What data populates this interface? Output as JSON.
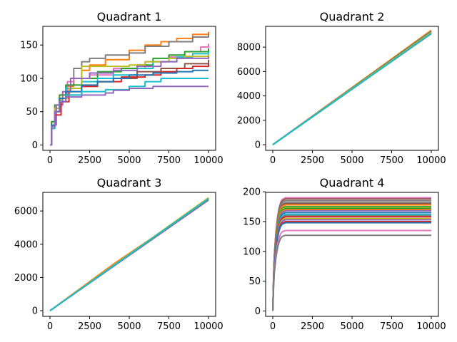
{
  "palette": [
    "#1f77b4",
    "#ff7f0e",
    "#2ca02c",
    "#d62728",
    "#9467bd",
    "#8c564b",
    "#e377c2",
    "#7f7f7f",
    "#bcbd22",
    "#17becf"
  ],
  "chart_data": [
    {
      "type": "line",
      "title": "Quadrant 1",
      "xlabel": "",
      "ylabel": "",
      "xlim": [
        -450,
        10450
      ],
      "ylim": [
        -8,
        178
      ],
      "xticks": [
        0,
        2500,
        5000,
        7500,
        10000
      ],
      "xtick_labels": [
        "0",
        "2500",
        "5000",
        "7500",
        "10000"
      ],
      "yticks": [
        0,
        50,
        100,
        150
      ],
      "ytick_labels": [
        "0",
        "50",
        "100",
        "150"
      ],
      "step": true,
      "grid": false,
      "series": [
        {
          "color": "#ff7f0e",
          "points": [
            [
              0,
              0
            ],
            [
              100,
              30
            ],
            [
              300,
              55
            ],
            [
              600,
              75
            ],
            [
              1000,
              88
            ],
            [
              1500,
              100
            ],
            [
              2000,
              112
            ],
            [
              2500,
              120
            ],
            [
              3500,
              128
            ],
            [
              5000,
              142
            ],
            [
              6000,
              150
            ],
            [
              7000,
              155
            ],
            [
              8000,
              160
            ],
            [
              9000,
              166
            ],
            [
              10000,
              170
            ]
          ]
        },
        {
          "color": "#7f7f7f",
          "points": [
            [
              0,
              0
            ],
            [
              100,
              35
            ],
            [
              300,
              55
            ],
            [
              600,
              70
            ],
            [
              1000,
              90
            ],
            [
              1500,
              115
            ],
            [
              2000,
              125
            ],
            [
              2500,
              130
            ],
            [
              3500,
              135
            ],
            [
              5000,
              138
            ],
            [
              6000,
              148
            ],
            [
              7500,
              155
            ],
            [
              9000,
              162
            ],
            [
              10000,
              167
            ]
          ]
        },
        {
          "color": "#e377c2",
          "points": [
            [
              0,
              0
            ],
            [
              100,
              30
            ],
            [
              300,
              50
            ],
            [
              700,
              70
            ],
            [
              1100,
              95
            ],
            [
              1500,
              100
            ],
            [
              2500,
              105
            ],
            [
              4000,
              115
            ],
            [
              6000,
              125
            ],
            [
              7500,
              132
            ],
            [
              8500,
              140
            ],
            [
              9500,
              147
            ],
            [
              10000,
              152
            ]
          ]
        },
        {
          "color": "#2ca02c",
          "points": [
            [
              0,
              0
            ],
            [
              100,
              35
            ],
            [
              300,
              60
            ],
            [
              600,
              75
            ],
            [
              1000,
              90
            ],
            [
              2000,
              100
            ],
            [
              3000,
              110
            ],
            [
              4500,
              115
            ],
            [
              5500,
              120
            ],
            [
              6500,
              130
            ],
            [
              7500,
              135
            ],
            [
              8500,
              140
            ],
            [
              10000,
              145
            ]
          ]
        },
        {
          "color": "#17becf",
          "points": [
            [
              0,
              0
            ],
            [
              100,
              25
            ],
            [
              300,
              50
            ],
            [
              600,
              70
            ],
            [
              1000,
              85
            ],
            [
              2000,
              95
            ],
            [
              3000,
              100
            ],
            [
              4000,
              105
            ],
            [
              5500,
              115
            ],
            [
              6500,
              125
            ],
            [
              8000,
              132
            ],
            [
              9000,
              137
            ],
            [
              10000,
              140
            ]
          ]
        },
        {
          "color": "#bcbd22",
          "points": [
            [
              0,
              0
            ],
            [
              100,
              30
            ],
            [
              300,
              55
            ],
            [
              700,
              70
            ],
            [
              1200,
              85
            ],
            [
              2000,
              118
            ],
            [
              4000,
              118
            ],
            [
              5000,
              120
            ],
            [
              6000,
              125
            ],
            [
              7500,
              130
            ],
            [
              8500,
              133
            ],
            [
              10000,
              137
            ]
          ]
        },
        {
          "color": "#9467bd",
          "points": [
            [
              0,
              0
            ],
            [
              100,
              30
            ],
            [
              400,
              60
            ],
            [
              800,
              80
            ],
            [
              1300,
              100
            ],
            [
              2500,
              108
            ],
            [
              4000,
              112
            ],
            [
              5500,
              118
            ],
            [
              7000,
              125
            ],
            [
              8000,
              130
            ],
            [
              10000,
              133
            ]
          ]
        },
        {
          "color": "#8c564b",
          "points": [
            [
              0,
              0
            ],
            [
              100,
              25
            ],
            [
              300,
              50
            ],
            [
              600,
              65
            ],
            [
              1000,
              75
            ],
            [
              2000,
              88
            ],
            [
              3000,
              95
            ],
            [
              4000,
              100
            ],
            [
              5500,
              110
            ],
            [
              7000,
              115
            ],
            [
              8500,
              122
            ],
            [
              10000,
              128
            ]
          ]
        },
        {
          "color": "#d62728",
          "points": [
            [
              0,
              0
            ],
            [
              100,
              25
            ],
            [
              300,
              45
            ],
            [
              700,
              65
            ],
            [
              1200,
              80
            ],
            [
              2000,
              88
            ],
            [
              3000,
              95
            ],
            [
              4500,
              102
            ],
            [
              6000,
              105
            ],
            [
              7000,
              110
            ],
            [
              8000,
              115
            ],
            [
              9000,
              118
            ],
            [
              10000,
              122
            ]
          ]
        },
        {
          "color": "#1f77b4",
          "points": [
            [
              0,
              0
            ],
            [
              100,
              30
            ],
            [
              300,
              50
            ],
            [
              600,
              70
            ],
            [
              1000,
              80
            ],
            [
              2000,
              90
            ],
            [
              3000,
              95
            ],
            [
              4000,
              100
            ],
            [
              5000,
              105
            ],
            [
              6500,
              108
            ],
            [
              8000,
              110
            ],
            [
              9000,
              112
            ],
            [
              10000,
              112
            ]
          ]
        },
        {
          "color": "#17becf",
          "points": [
            [
              0,
              0
            ],
            [
              100,
              25
            ],
            [
              300,
              50
            ],
            [
              600,
              65
            ],
            [
              1000,
              75
            ],
            [
              2000,
              80
            ],
            [
              3500,
              83
            ],
            [
              5000,
              88
            ],
            [
              6000,
              95
            ],
            [
              7000,
              100
            ],
            [
              10000,
              100
            ]
          ]
        },
        {
          "color": "#9467bd",
          "points": [
            [
              0,
              0
            ],
            [
              100,
              28
            ],
            [
              300,
              50
            ],
            [
              600,
              65
            ],
            [
              1000,
              72
            ],
            [
              2000,
              75
            ],
            [
              3500,
              78
            ],
            [
              4000,
              82
            ],
            [
              5000,
              85
            ],
            [
              6500,
              88
            ],
            [
              10000,
              88
            ]
          ]
        }
      ]
    },
    {
      "type": "line",
      "title": "Quadrant 2",
      "xlabel": "",
      "ylabel": "",
      "xlim": [
        -450,
        10450
      ],
      "ylim": [
        -460,
        9700
      ],
      "xticks": [
        0,
        2500,
        5000,
        7500,
        10000
      ],
      "xtick_labels": [
        "0",
        "2500",
        "5000",
        "7500",
        "10000"
      ],
      "yticks": [
        0,
        2000,
        4000,
        6000,
        8000
      ],
      "ytick_labels": [
        "0",
        "2000",
        "4000",
        "6000",
        "8000"
      ],
      "step": false,
      "grid": false,
      "series": [
        {
          "color": "#1f77b4",
          "points": [
            [
              0,
              0
            ],
            [
              10000,
              9200
            ]
          ]
        },
        {
          "color": "#ff7f0e",
          "points": [
            [
              0,
              0
            ],
            [
              10000,
              9380
            ]
          ]
        },
        {
          "color": "#2ca02c",
          "points": [
            [
              0,
              0
            ],
            [
              10000,
              9300
            ]
          ]
        },
        {
          "color": "#d62728",
          "points": [
            [
              0,
              0
            ],
            [
              10000,
              9250
            ]
          ]
        },
        {
          "color": "#9467bd",
          "points": [
            [
              0,
              0
            ],
            [
              10000,
              9150
            ]
          ]
        },
        {
          "color": "#8c564b",
          "points": [
            [
              0,
              0
            ],
            [
              10000,
              9100
            ]
          ]
        },
        {
          "color": "#e377c2",
          "points": [
            [
              0,
              0
            ],
            [
              10000,
              9220
            ]
          ]
        },
        {
          "color": "#7f7f7f",
          "points": [
            [
              0,
              0
            ],
            [
              10000,
              9280
            ]
          ]
        },
        {
          "color": "#bcbd22",
          "points": [
            [
              0,
              0
            ],
            [
              10000,
              9180
            ]
          ]
        },
        {
          "color": "#17becf",
          "points": [
            [
              0,
              0
            ],
            [
              10000,
              9120
            ]
          ]
        }
      ]
    },
    {
      "type": "line",
      "title": "Quadrant 3",
      "xlabel": "",
      "ylabel": "",
      "xlim": [
        -450,
        10450
      ],
      "ylim": [
        -340,
        7120
      ],
      "xticks": [
        0,
        2500,
        5000,
        7500,
        10000
      ],
      "xtick_labels": [
        "0",
        "2500",
        "5000",
        "7500",
        "10000"
      ],
      "yticks": [
        0,
        2000,
        4000,
        6000
      ],
      "ytick_labels": [
        "0",
        "2000",
        "4000",
        "6000"
      ],
      "step": false,
      "grid": false,
      "series": [
        {
          "color": "#1f77b4",
          "points": [
            [
              0,
              0
            ],
            [
              10000,
              6720
            ]
          ]
        },
        {
          "color": "#ff7f0e",
          "points": [
            [
              0,
              0
            ],
            [
              4000,
              2800
            ],
            [
              10000,
              6680
            ]
          ]
        },
        {
          "color": "#2ca02c",
          "points": [
            [
              0,
              0
            ],
            [
              10000,
              6780
            ]
          ]
        },
        {
          "color": "#d62728",
          "points": [
            [
              0,
              0
            ],
            [
              10000,
              6700
            ]
          ]
        },
        {
          "color": "#9467bd",
          "points": [
            [
              0,
              0
            ],
            [
              10000,
              6650
            ]
          ]
        },
        {
          "color": "#8c564b",
          "points": [
            [
              0,
              0
            ],
            [
              10000,
              6730
            ]
          ]
        },
        {
          "color": "#e377c2",
          "points": [
            [
              0,
              0
            ],
            [
              10000,
              6760
            ]
          ]
        },
        {
          "color": "#7f7f7f",
          "points": [
            [
              0,
              0
            ],
            [
              10000,
              6690
            ]
          ]
        },
        {
          "color": "#bcbd22",
          "points": [
            [
              0,
              0
            ],
            [
              10000,
              6800
            ]
          ]
        },
        {
          "color": "#17becf",
          "points": [
            [
              0,
              0
            ],
            [
              10000,
              6750
            ]
          ]
        }
      ]
    },
    {
      "type": "line",
      "title": "Quadrant 4",
      "xlabel": "",
      "ylabel": "",
      "xlim": [
        -450,
        10450
      ],
      "ylim": [
        -9,
        199
      ],
      "xticks": [
        0,
        2500,
        5000,
        7500,
        10000
      ],
      "xtick_labels": [
        "0",
        "2500",
        "5000",
        "7500",
        "10000"
      ],
      "yticks": [
        0,
        50,
        100,
        150,
        200
      ],
      "ytick_labels": [
        "0",
        "50",
        "100",
        "150",
        "200"
      ],
      "step": false,
      "grid": false,
      "plateaus": [
        190,
        188,
        185,
        182,
        180,
        178,
        175,
        173,
        172,
        170,
        168,
        165,
        162,
        160,
        158,
        155,
        153,
        150,
        148,
        135,
        127
      ],
      "plateau_colors": [
        "#e377c2",
        "#8c564b",
        "#7f7f7f",
        "#7f7f7f",
        "#8c564b",
        "#ff7f0e",
        "#2ca02c",
        "#bcbd22",
        "#2ca02c",
        "#ff7f0e",
        "#9467bd",
        "#1f77b4",
        "#17becf",
        "#7f7f7f",
        "#d62728",
        "#bcbd22",
        "#9467bd",
        "#d62728",
        "#1f77b4",
        "#e377c2",
        "#7f7f7f"
      ],
      "curve_shape": [
        [
          0,
          0
        ],
        [
          50,
          0.3
        ],
        [
          100,
          0.5
        ],
        [
          200,
          0.7
        ],
        [
          300,
          0.83
        ],
        [
          400,
          0.91
        ],
        [
          500,
          0.96
        ],
        [
          600,
          0.985
        ],
        [
          800,
          1.0
        ],
        [
          10000,
          1.0
        ]
      ]
    }
  ]
}
